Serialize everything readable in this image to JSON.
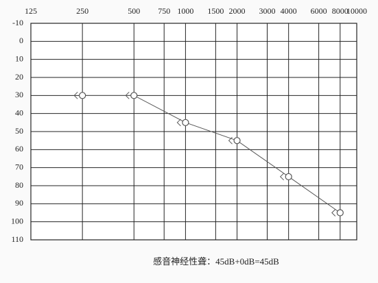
{
  "chart_data": {
    "type": "line",
    "x_scale": "log",
    "xlim": [
      125,
      10000
    ],
    "xticks": [
      125,
      250,
      500,
      750,
      1000,
      1500,
      2000,
      3000,
      4000,
      6000,
      8000,
      10000
    ],
    "ylim": [
      -10,
      110
    ],
    "y_reversed": true,
    "yticks": [
      -10,
      0,
      10,
      20,
      30,
      40,
      50,
      60,
      70,
      80,
      90,
      100,
      110
    ],
    "grid": true,
    "x": [
      250,
      500,
      1000,
      2000,
      4000,
      8000
    ],
    "series": [
      {
        "color": "#555555",
        "values": [
          30,
          30,
          45,
          55,
          75,
          95
        ]
      }
    ],
    "annotation": "感音神经性聋：45dB+0dB=45dB"
  }
}
